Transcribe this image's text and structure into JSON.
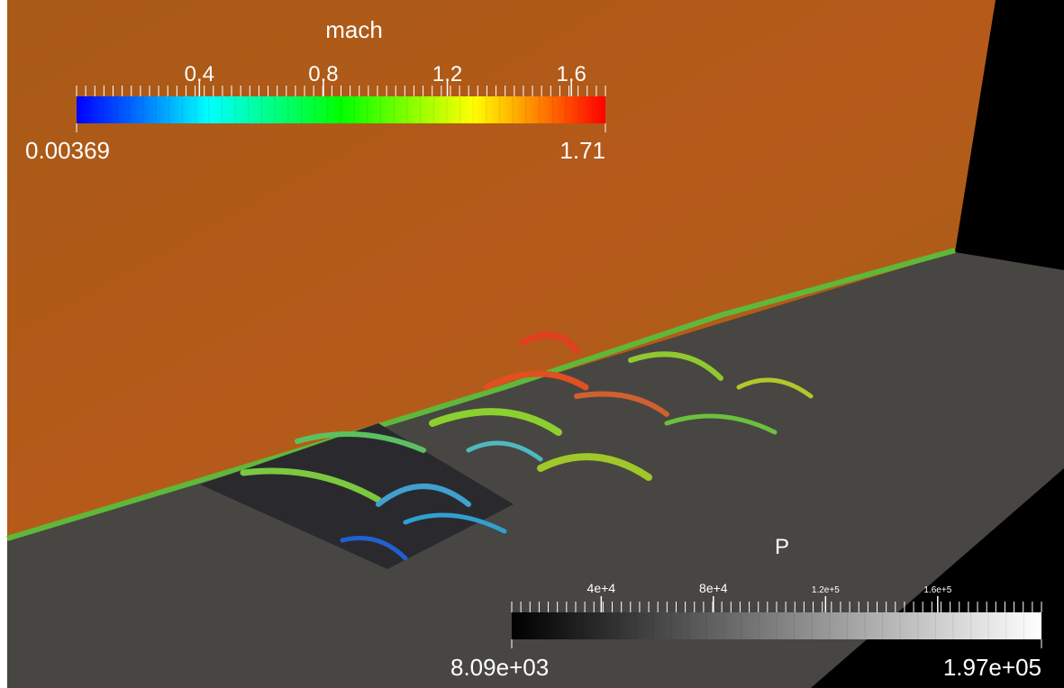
{
  "colorbars": [
    {
      "title": "mach",
      "min": 0.00369,
      "max": 1.71,
      "ticks": [
        0.4,
        0.8,
        1.2,
        1.6
      ],
      "colors": [
        "#0000ff",
        "#0078ff",
        "#00ffff",
        "#00ff80",
        "#00ff00",
        "#80ff00",
        "#ffff00",
        "#ff8000",
        "#ff0000"
      ]
    },
    {
      "title": "P",
      "min": {
        "value": 8090,
        "label": "8.09e+03"
      },
      "max": {
        "value": 197000,
        "label": "1.97e+05"
      },
      "ticks": [
        {
          "value": 40000,
          "label": "4e+4"
        },
        {
          "value": 80000,
          "label": "8e+4"
        },
        {
          "value": 120000,
          "label": "1.2e+5"
        },
        {
          "value": 160000,
          "label": "1.6e+5"
        }
      ],
      "colors": [
        "#000000",
        "#ffffff"
      ]
    }
  ]
}
